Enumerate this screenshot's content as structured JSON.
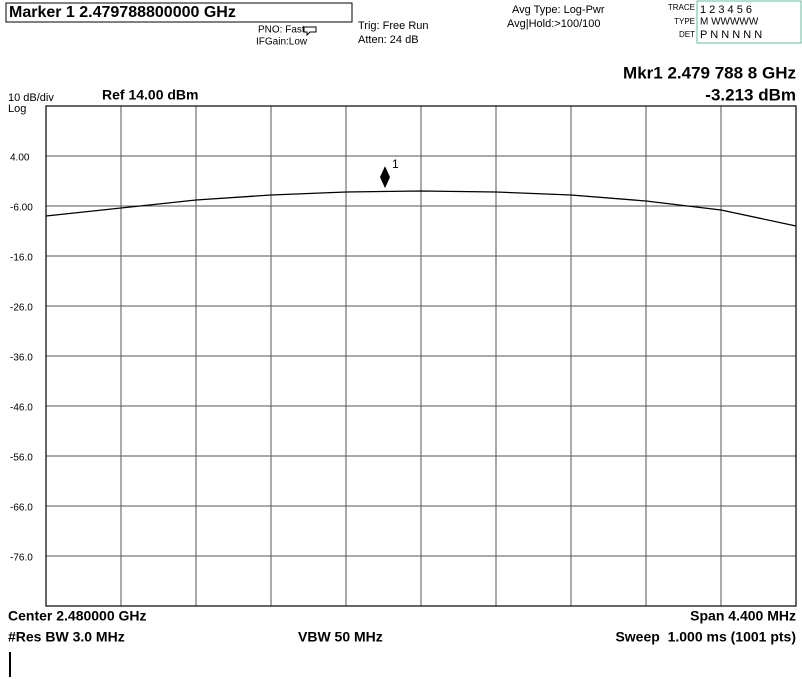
{
  "chart_data": {
    "type": "line",
    "title": "Marker 1 2.479788800000 GHz",
    "header": {
      "pno": "PNO: Fast",
      "ifgain": "IFGain:Low",
      "trig": "Trig: Free Run",
      "atten": "Atten: 24 dB",
      "avg_type": "Avg Type: Log-Pwr",
      "avg_hold": "Avg|Hold:>100/100",
      "trace_label": "TRACE",
      "trace_values": "1 2 3 4 5 6",
      "type_label": "TYPE",
      "type_values": "M WWWWW",
      "det_label": "DET",
      "det_values": "P N N N N N"
    },
    "marker_readout": {
      "frequency": "Mkr1 2.479 788 8 GHz",
      "level": "-3.213 dBm"
    },
    "scale": {
      "per_div": "10 dB/div",
      "ref": "Ref 14.00 dBm",
      "mode": "Log"
    },
    "footer": {
      "center": "Center 2.480000 GHz",
      "span": "Span 4.400 MHz",
      "rbw": "#Res BW 3.0 MHz",
      "vbw": "VBW 50 MHz",
      "sweep": "Sweep  1.000 ms (1001 pts)"
    },
    "x": [
      2.4778,
      2.47824,
      2.47868,
      2.47912,
      2.47956,
      2.48,
      2.48044,
      2.48088,
      2.48132,
      2.48176,
      2.4822
    ],
    "series": [
      {
        "color": "#000000",
        "values": [
          -8.0,
          -6.4,
          -4.8,
          -3.8,
          -3.2,
          -3.0,
          -3.2,
          -3.8,
          -5.0,
          -6.8,
          -10.0
        ]
      }
    ],
    "marker": {
      "label": "1",
      "x": 2.4797888,
      "y": -3.213
    },
    "xlim": [
      2.4778,
      2.4822
    ],
    "ylim": [
      -86,
      14
    ],
    "yticks": [
      {
        "value": 4,
        "label": "4.00"
      },
      {
        "value": -6,
        "label": "-6.00"
      },
      {
        "value": -16,
        "label": "-16.0"
      },
      {
        "value": -26,
        "label": "-26.0"
      },
      {
        "value": -36,
        "label": "-36.0"
      },
      {
        "value": -46,
        "label": "-46.0"
      },
      {
        "value": -56,
        "label": "-56.0"
      },
      {
        "value": -66,
        "label": "-66.0"
      },
      {
        "value": -76,
        "label": "-76.0"
      }
    ],
    "grid": true
  }
}
